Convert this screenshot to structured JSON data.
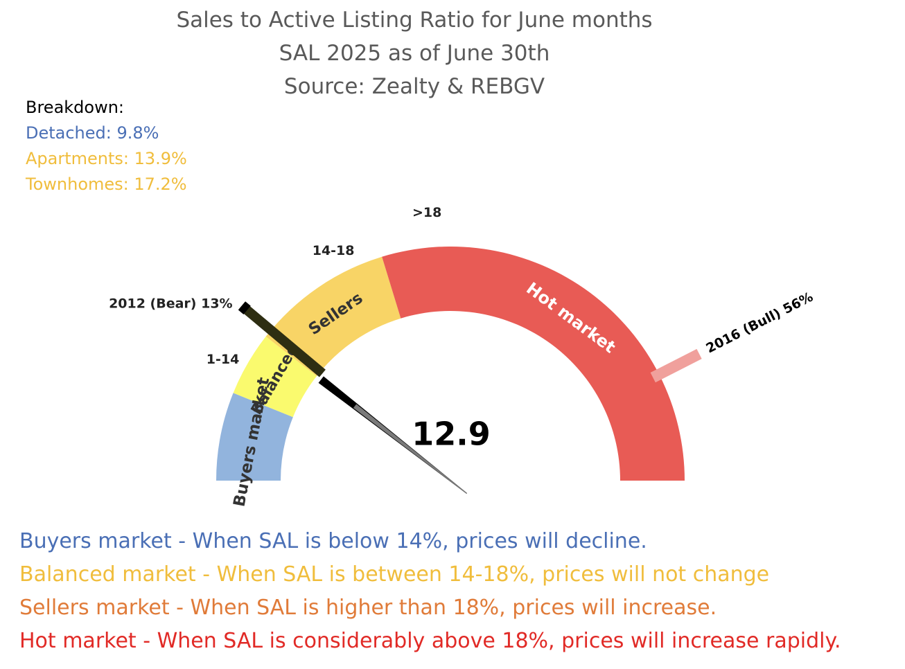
{
  "title": {
    "line1": "Sales to Active Listing Ratio for June months",
    "line2": "SAL 2025 as of June 30th",
    "line3": "Source: Zealty & REBGV"
  },
  "breakdown": {
    "heading": "Breakdown:",
    "detached": "Detached: 9.8%",
    "apartments": "Apartments: 13.9%",
    "townhomes": "Townhomes: 17.2%"
  },
  "legend": {
    "buyers": "Buyers market - When SAL is below 14%, prices will decline.",
    "balanced": "Balanced market - When SAL is between 14-18%, prices will not change",
    "sellers": "Sellers market  - When SAL is higher than 18%, prices will increase.",
    "hot": "Hot market - When SAL is considerably above 18%, prices will increase rapidly."
  },
  "colors": {
    "buyers": "#92b4dd",
    "balanced": "#fafa6e",
    "sellers": "#f8d466",
    "hot": "#e85b55",
    "bull_marker": "#f0a09c",
    "title": "#595959",
    "breakdown_detached": "#4a6fb5",
    "breakdown_other": "#f0bd3c",
    "legend_buyers": "#4a6fb5",
    "legend_balanced": "#f0bd3c",
    "legend_sellers": "#e07b39",
    "legend_hot": "#e12a26"
  },
  "chart_data": {
    "type": "gauge",
    "value": 12.9,
    "value_label": "12.9",
    "segments": [
      {
        "name": "Buyers market",
        "range_label": "1-14",
        "start_deg": 0,
        "end_deg": 22
      },
      {
        "name": "Balanced",
        "range_label": "",
        "start_deg": 22,
        "end_deg": 38
      },
      {
        "name": "Sellers",
        "range_label": "14-18",
        "start_deg": 38,
        "end_deg": 73
      },
      {
        "name": "Hot market",
        "range_label": ">18",
        "start_deg": 73,
        "end_deg": 180
      }
    ],
    "needle_deg": 38,
    "markers": [
      {
        "label": "2012 (Bear) 13%",
        "deg": 40
      },
      {
        "label": "2016 (Bull) 56%",
        "deg": 153
      }
    ]
  }
}
